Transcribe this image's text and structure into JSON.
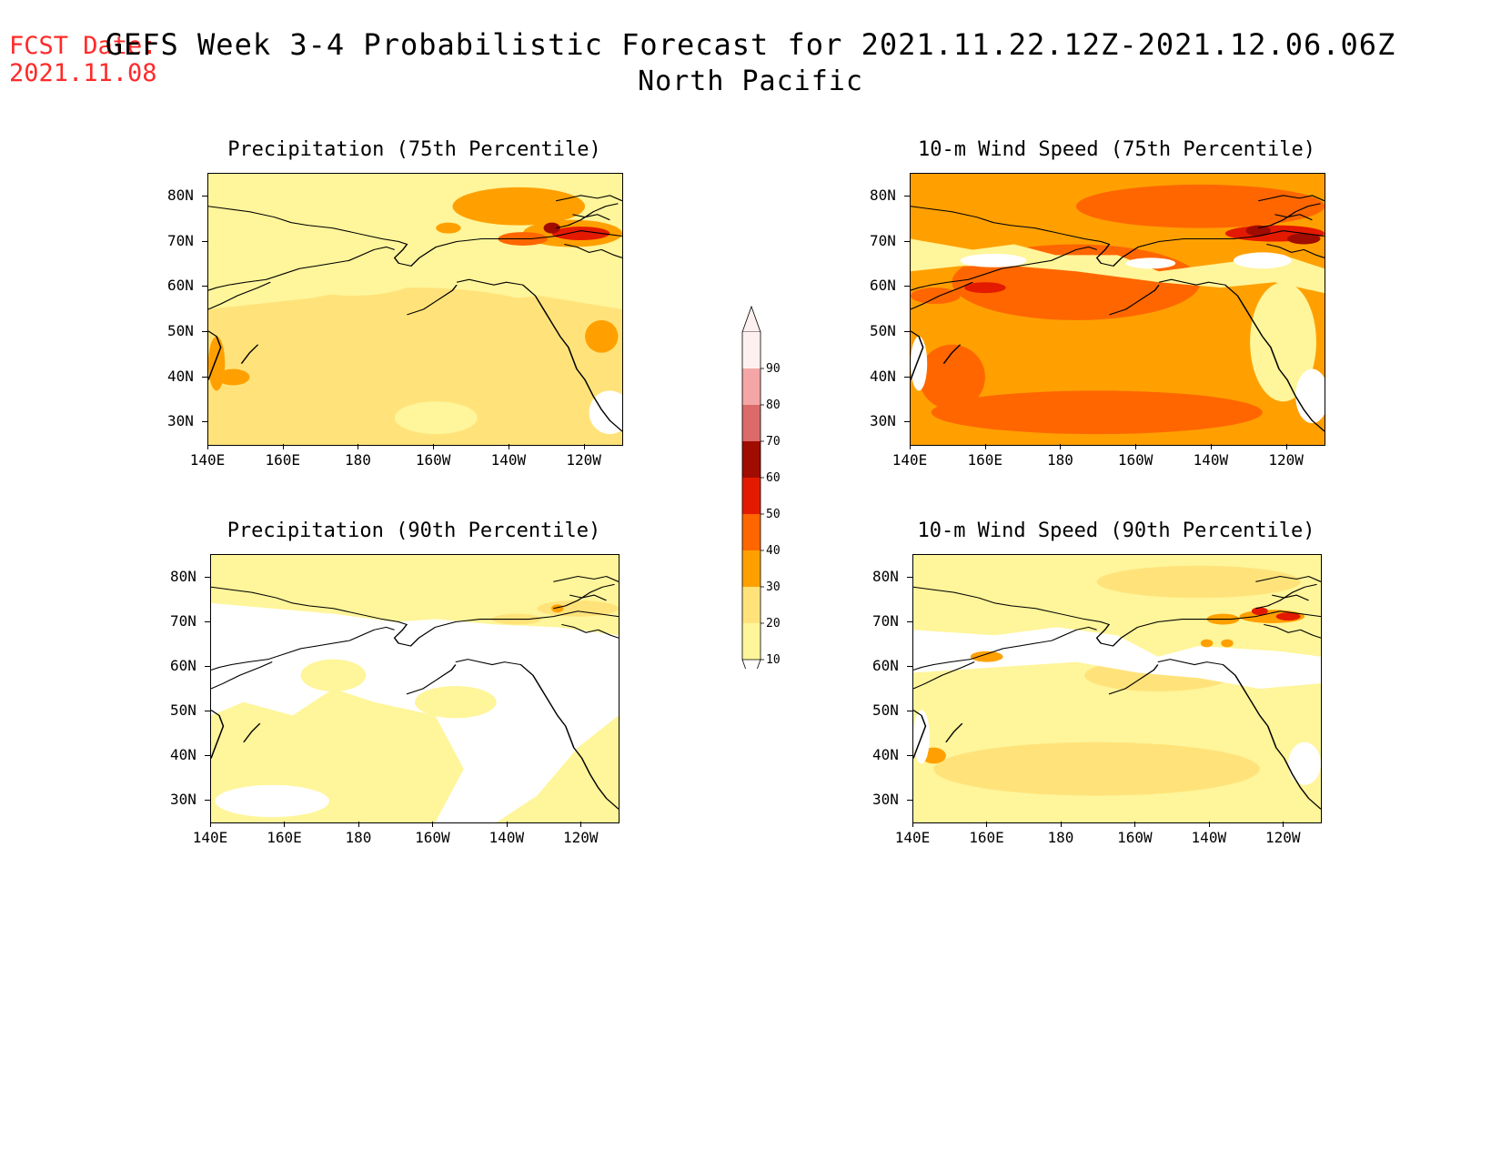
{
  "header": {
    "fcst_label": "FCST Date:",
    "fcst_date": "2021.11.08",
    "title": "GEFS Week 3-4 Probabilistic Forecast for 2021.11.22.12Z-2021.12.06.06Z",
    "region": "North Pacific"
  },
  "axes": {
    "lat_labels": [
      "80N",
      "70N",
      "60N",
      "50N",
      "40N",
      "30N"
    ],
    "lon_labels": [
      "140E",
      "160E",
      "180",
      "160W",
      "140W",
      "120W"
    ],
    "lat_values": [
      80,
      70,
      60,
      50,
      40,
      30
    ],
    "lon_values": [
      140,
      160,
      180,
      200,
      220,
      240
    ],
    "lat_range": [
      25,
      85
    ],
    "lon_range": [
      140,
      250
    ]
  },
  "panels": [
    {
      "title": "Precipitation (75th Percentile)",
      "variable": "precipitation",
      "percentile": 75
    },
    {
      "title": "10-m Wind Speed (75th Percentile)",
      "variable": "wind",
      "percentile": 75
    },
    {
      "title": "Precipitation (90th Percentile)",
      "variable": "precipitation",
      "percentile": 90
    },
    {
      "title": "10-m Wind Speed (90th Percentile)",
      "variable": "wind",
      "percentile": 90
    }
  ],
  "colorbar": {
    "labels": [
      "90",
      "80",
      "70",
      "60",
      "50",
      "40",
      "30",
      "20",
      "10"
    ],
    "colors": [
      "#fff0f0",
      "#f4a6a6",
      "#dc6a6a",
      "#a00c00",
      "#e41a00",
      "#ff6600",
      "#ffa000",
      "#ffe37a",
      "#fff59a"
    ],
    "bottom_color": "#ffffff"
  },
  "map_colors": {
    "white": "#ffffff",
    "c10": "#fff59a",
    "c20": "#ffe37a",
    "c30": "#ffa000",
    "c40": "#ff6600",
    "c50": "#e41a00",
    "c60": "#a00c00"
  }
}
